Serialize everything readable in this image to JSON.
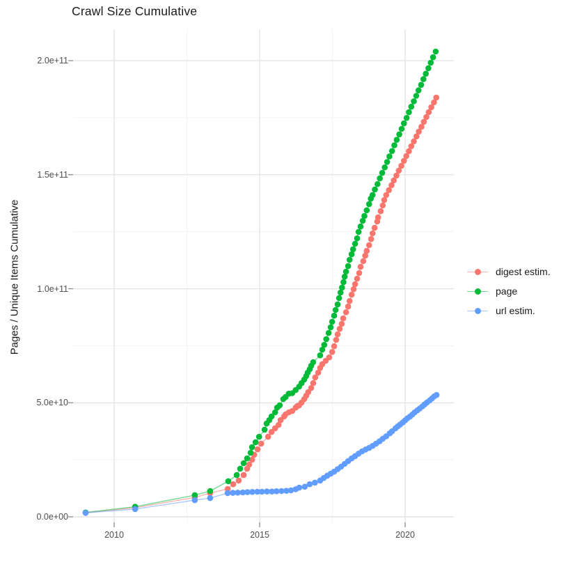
{
  "figure": {
    "title": "Crawl Size Cumulative",
    "y_axis_title": "Pages / Unique Items Cumulative"
  },
  "chart_data": {
    "type": "scatter",
    "title": "Crawl Size Cumulative",
    "xlabel": "",
    "ylabel": "Pages / Unique Items Cumulative",
    "x_unit": "year (decimal)",
    "value_unit": "pages",
    "value_scale": 1000000000.0,
    "note": "point y-values are in billions of pages; multiply by value_scale for absolute counts",
    "grid": true,
    "legend_position": "right",
    "xlim": [
      2008.6,
      2021.7
    ],
    "ylim_billions": [
      -4,
      214
    ],
    "x_ticks": {
      "values": [
        2010,
        2015,
        2020
      ],
      "labels": [
        "2010",
        "2015",
        "2020"
      ],
      "minor": [
        2012.5,
        2017.5
      ]
    },
    "y_ticks": {
      "values_billions": [
        0,
        50,
        100,
        150,
        200
      ],
      "labels": [
        "0.0e+00",
        "5.0e+10",
        "1.0e+11",
        "1.5e+11",
        "2.0e+11"
      ],
      "minor_billions": [
        25,
        75,
        125,
        175
      ]
    },
    "series": [
      {
        "name": "digest estim.",
        "color": "#F8766D",
        "points": [
          [
            2009.02,
            1.8
          ],
          [
            2010.72,
            4.0
          ],
          [
            2012.77,
            8.5
          ],
          [
            2013.3,
            10.4
          ],
          [
            2013.9,
            12.2
          ],
          [
            2014.09,
            14.3
          ],
          [
            2014.28,
            15.9
          ],
          [
            2014.45,
            18.3
          ],
          [
            2014.57,
            21.1
          ],
          [
            2014.64,
            22.9
          ],
          [
            2014.74,
            25.0
          ],
          [
            2014.81,
            27.2
          ],
          [
            2014.93,
            29.6
          ],
          [
            2015.05,
            32.1
          ],
          [
            2015.29,
            35.1
          ],
          [
            2015.41,
            37.2
          ],
          [
            2015.53,
            38.8
          ],
          [
            2015.65,
            40.3
          ],
          [
            2015.72,
            42.4
          ],
          [
            2015.84,
            44.0
          ],
          [
            2015.89,
            44.9
          ],
          [
            2016.0,
            45.8
          ],
          [
            2016.12,
            46.4
          ],
          [
            2016.24,
            47.9
          ],
          [
            2016.29,
            48.5
          ],
          [
            2016.36,
            48.9
          ],
          [
            2016.44,
            50.1
          ],
          [
            2016.53,
            51.6
          ],
          [
            2016.6,
            53.1
          ],
          [
            2016.67,
            54.7
          ],
          [
            2016.77,
            56.5
          ],
          [
            2016.84,
            58.6
          ],
          [
            2016.91,
            61.1
          ],
          [
            2017.01,
            63.2
          ],
          [
            2017.08,
            65.3
          ],
          [
            2017.15,
            66.9
          ],
          [
            2017.27,
            68.4
          ],
          [
            2017.39,
            69.9
          ],
          [
            2017.49,
            72.3
          ],
          [
            2017.56,
            74.8
          ],
          [
            2017.63,
            77.6
          ],
          [
            2017.68,
            80.0
          ],
          [
            2017.75,
            82.4
          ],
          [
            2017.82,
            84.6
          ],
          [
            2017.87,
            87.0
          ],
          [
            2017.97,
            89.7
          ],
          [
            2018.04,
            92.2
          ],
          [
            2018.09,
            94.6
          ],
          [
            2018.16,
            97.4
          ],
          [
            2018.23,
            99.8
          ],
          [
            2018.28,
            102.0
          ],
          [
            2018.35,
            104.4
          ],
          [
            2018.42,
            106.9
          ],
          [
            2018.47,
            109.6
          ],
          [
            2018.56,
            112.1
          ],
          [
            2018.63,
            114.5
          ],
          [
            2018.68,
            116.6
          ],
          [
            2018.76,
            119.1
          ],
          [
            2018.83,
            121.8
          ],
          [
            2018.88,
            124.3
          ],
          [
            2018.95,
            126.7
          ],
          [
            2019.04,
            129.5
          ],
          [
            2019.07,
            131.3
          ],
          [
            2019.16,
            134.0
          ],
          [
            2019.23,
            136.5
          ],
          [
            2019.28,
            138.9
          ],
          [
            2019.35,
            141.1
          ],
          [
            2019.44,
            143.2
          ],
          [
            2019.53,
            145.4
          ],
          [
            2019.61,
            147.5
          ],
          [
            2019.7,
            149.6
          ],
          [
            2019.78,
            151.8
          ],
          [
            2019.87,
            153.9
          ],
          [
            2019.96,
            156.1
          ],
          [
            2020.04,
            158.2
          ],
          [
            2020.13,
            160.3
          ],
          [
            2020.21,
            162.5
          ],
          [
            2020.3,
            164.6
          ],
          [
            2020.39,
            166.8
          ],
          [
            2020.47,
            168.9
          ],
          [
            2020.56,
            171.0
          ],
          [
            2020.64,
            173.2
          ],
          [
            2020.73,
            175.3
          ],
          [
            2020.81,
            177.4
          ],
          [
            2020.9,
            179.6
          ],
          [
            2020.99,
            181.7
          ],
          [
            2021.07,
            183.8
          ]
        ]
      },
      {
        "name": "page",
        "color": "#00BA38",
        "points": [
          [
            2009.02,
            1.9
          ],
          [
            2010.72,
            4.4
          ],
          [
            2012.77,
            9.5
          ],
          [
            2013.3,
            11.3
          ],
          [
            2013.92,
            15.6
          ],
          [
            2014.21,
            18.3
          ],
          [
            2014.33,
            21.1
          ],
          [
            2014.45,
            23.5
          ],
          [
            2014.57,
            25.6
          ],
          [
            2014.69,
            28.1
          ],
          [
            2014.74,
            30.5
          ],
          [
            2014.86,
            32.7
          ],
          [
            2014.98,
            35.1
          ],
          [
            2015.17,
            38.2
          ],
          [
            2015.24,
            40.9
          ],
          [
            2015.33,
            42.4
          ],
          [
            2015.41,
            44.0
          ],
          [
            2015.53,
            45.8
          ],
          [
            2015.6,
            47.9
          ],
          [
            2015.69,
            48.9
          ],
          [
            2015.81,
            51.6
          ],
          [
            2015.89,
            52.5
          ],
          [
            2016.0,
            54.0
          ],
          [
            2016.12,
            54.2
          ],
          [
            2016.24,
            55.6
          ],
          [
            2016.36,
            57.1
          ],
          [
            2016.44,
            58.6
          ],
          [
            2016.53,
            60.2
          ],
          [
            2016.6,
            61.7
          ],
          [
            2016.65,
            63.2
          ],
          [
            2016.72,
            64.7
          ],
          [
            2016.77,
            66.2
          ],
          [
            2016.84,
            67.8
          ],
          [
            2017.08,
            70.8
          ],
          [
            2017.15,
            73.3
          ],
          [
            2017.22,
            75.4
          ],
          [
            2017.29,
            77.9
          ],
          [
            2017.37,
            80.6
          ],
          [
            2017.44,
            83.1
          ],
          [
            2017.49,
            85.5
          ],
          [
            2017.56,
            88.2
          ],
          [
            2017.61,
            90.7
          ],
          [
            2017.68,
            93.1
          ],
          [
            2017.73,
            95.9
          ],
          [
            2017.78,
            98.3
          ],
          [
            2017.83,
            100.5
          ],
          [
            2017.88,
            102.9
          ],
          [
            2017.92,
            105.3
          ],
          [
            2017.97,
            107.5
          ],
          [
            2018.04,
            109.9
          ],
          [
            2018.09,
            112.7
          ],
          [
            2018.16,
            115.1
          ],
          [
            2018.21,
            117.3
          ],
          [
            2018.28,
            119.7
          ],
          [
            2018.35,
            122.1
          ],
          [
            2018.4,
            124.9
          ],
          [
            2018.47,
            127.3
          ],
          [
            2018.54,
            129.8
          ],
          [
            2018.6,
            131.9
          ],
          [
            2018.68,
            134.4
          ],
          [
            2018.76,
            137.1
          ],
          [
            2018.82,
            139.5
          ],
          [
            2018.88,
            141.1
          ],
          [
            2018.96,
            143.5
          ],
          [
            2019.05,
            145.9
          ],
          [
            2019.13,
            148.4
          ],
          [
            2019.21,
            150.8
          ],
          [
            2019.3,
            153.2
          ],
          [
            2019.38,
            155.6
          ],
          [
            2019.46,
            158.0
          ],
          [
            2019.55,
            160.4
          ],
          [
            2019.63,
            162.9
          ],
          [
            2019.71,
            165.3
          ],
          [
            2019.8,
            167.7
          ],
          [
            2019.88,
            170.1
          ],
          [
            2019.96,
            172.5
          ],
          [
            2020.05,
            174.9
          ],
          [
            2020.13,
            177.4
          ],
          [
            2020.21,
            179.8
          ],
          [
            2020.3,
            182.2
          ],
          [
            2020.38,
            184.6
          ],
          [
            2020.46,
            187.0
          ],
          [
            2020.55,
            189.4
          ],
          [
            2020.63,
            191.9
          ],
          [
            2020.71,
            194.3
          ],
          [
            2020.8,
            196.7
          ],
          [
            2020.88,
            199.1
          ],
          [
            2020.96,
            201.5
          ],
          [
            2021.05,
            204.0
          ]
        ]
      },
      {
        "name": "url estim.",
        "color": "#619CFF",
        "points": [
          [
            2009.02,
            1.7
          ],
          [
            2010.72,
            3.4
          ],
          [
            2012.77,
            7.3
          ],
          [
            2013.3,
            8.2
          ],
          [
            2013.9,
            10.4
          ],
          [
            2014.08,
            10.5
          ],
          [
            2014.25,
            10.6
          ],
          [
            2014.42,
            10.7
          ],
          [
            2014.58,
            10.8
          ],
          [
            2014.75,
            10.9
          ],
          [
            2014.92,
            11.0
          ],
          [
            2015.08,
            11.0
          ],
          [
            2015.25,
            11.1
          ],
          [
            2015.42,
            11.1
          ],
          [
            2015.58,
            11.2
          ],
          [
            2015.75,
            11.3
          ],
          [
            2015.92,
            11.4
          ],
          [
            2016.08,
            11.6
          ],
          [
            2016.24,
            12.1
          ],
          [
            2016.36,
            12.8
          ],
          [
            2016.55,
            13.2
          ],
          [
            2016.72,
            14.3
          ],
          [
            2016.9,
            15.0
          ],
          [
            2017.08,
            15.9
          ],
          [
            2017.2,
            17.0
          ],
          [
            2017.32,
            18.0
          ],
          [
            2017.44,
            18.9
          ],
          [
            2017.56,
            19.8
          ],
          [
            2017.68,
            20.9
          ],
          [
            2017.8,
            22.0
          ],
          [
            2017.92,
            23.2
          ],
          [
            2018.04,
            24.4
          ],
          [
            2018.16,
            25.6
          ],
          [
            2018.28,
            26.6
          ],
          [
            2018.4,
            27.7
          ],
          [
            2018.52,
            28.7
          ],
          [
            2018.64,
            29.5
          ],
          [
            2018.76,
            30.2
          ],
          [
            2018.88,
            31.1
          ],
          [
            2019.0,
            32.1
          ],
          [
            2019.12,
            33.1
          ],
          [
            2019.23,
            34.2
          ],
          [
            2019.35,
            35.3
          ],
          [
            2019.47,
            36.6
          ],
          [
            2019.55,
            37.5
          ],
          [
            2019.67,
            38.8
          ],
          [
            2019.75,
            39.7
          ],
          [
            2019.83,
            40.5
          ],
          [
            2019.92,
            41.4
          ],
          [
            2020.0,
            42.3
          ],
          [
            2020.08,
            43.2
          ],
          [
            2020.17,
            44.0
          ],
          [
            2020.25,
            44.9
          ],
          [
            2020.33,
            45.8
          ],
          [
            2020.42,
            46.7
          ],
          [
            2020.5,
            47.5
          ],
          [
            2020.59,
            48.4
          ],
          [
            2020.67,
            49.3
          ],
          [
            2020.75,
            50.1
          ],
          [
            2020.84,
            51.0
          ],
          [
            2020.92,
            51.9
          ],
          [
            2021.0,
            52.8
          ],
          [
            2021.08,
            53.4
          ]
        ]
      }
    ]
  }
}
